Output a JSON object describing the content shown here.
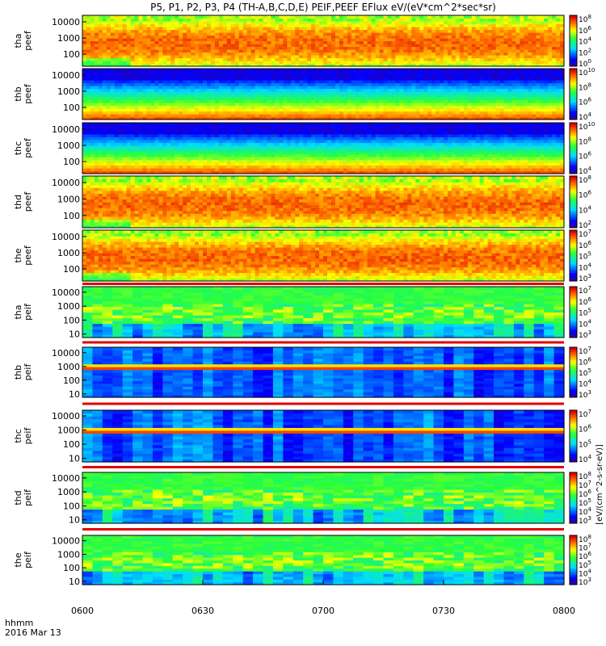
{
  "chart_data": {
    "type": "heatmap",
    "title": "P5, P1, P2, P3, P4 (TH-A,B,C,D,E) PEIF,PEEF EFlux eV/(eV*cm^2*sec*sr)",
    "x_ticks": [
      "0600",
      "0630",
      "0700",
      "0730",
      "0800"
    ],
    "x_range": [
      "06:00",
      "08:00"
    ],
    "time_label": "hhmm",
    "date_label": "2016 Mar 13",
    "colorbar_unit": "[eV/(cm^2-s-sr-eV)]",
    "y_ticks_common": [
      "10",
      "100",
      "1000",
      "10000"
    ],
    "panels": [
      {
        "probe": "tha",
        "product": "peef",
        "ylabels": [
          "tha",
          "peef"
        ],
        "yticks": [
          "100",
          "1000",
          "10000"
        ],
        "cbar_ticks": [
          "10^0",
          "10^2",
          "10^4",
          "10^6",
          "10^8"
        ],
        "style": "electron-red"
      },
      {
        "probe": "thb",
        "product": "peef",
        "ylabels": [
          "thb",
          "peef"
        ],
        "yticks": [
          "100",
          "1000",
          "10000"
        ],
        "cbar_ticks": [
          "10^4",
          "10^6",
          "10^8",
          "10^10"
        ],
        "style": "electron-quiet"
      },
      {
        "probe": "thc",
        "product": "peef",
        "ylabels": [
          "thc",
          "peef"
        ],
        "yticks": [
          "100",
          "1000",
          "10000"
        ],
        "cbar_ticks": [
          "10^4",
          "10^6",
          "10^8",
          "10^10"
        ],
        "style": "electron-quiet"
      },
      {
        "probe": "thd",
        "product": "peef",
        "ylabels": [
          "thd",
          "peef"
        ],
        "yticks": [
          "100",
          "1000",
          "10000"
        ],
        "cbar_ticks": [
          "10^2",
          "10^4",
          "10^6",
          "10^8"
        ],
        "style": "electron-red"
      },
      {
        "probe": "the",
        "product": "peef",
        "ylabels": [
          "the",
          "peef"
        ],
        "yticks": [
          "100",
          "1000",
          "10000"
        ],
        "cbar_ticks": [
          "10^3",
          "10^4",
          "10^5",
          "10^6",
          "10^7"
        ],
        "style": "electron-red"
      },
      {
        "probe": "tha",
        "product": "peif",
        "ylabels": [
          "tha",
          "peif"
        ],
        "yticks": [
          "10",
          "100",
          "1000",
          "10000"
        ],
        "cbar_ticks": [
          "10^3",
          "10^4",
          "10^5",
          "10^6",
          "10^7"
        ],
        "style": "ion-green"
      },
      {
        "probe": "thb",
        "product": "peif",
        "ylabels": [
          "thb",
          "peif"
        ],
        "yticks": [
          "10",
          "100",
          "1000",
          "10000"
        ],
        "cbar_ticks": [
          "10^3",
          "10^4",
          "10^5",
          "10^6",
          "10^7"
        ],
        "style": "ion-quiet"
      },
      {
        "probe": "thc",
        "product": "peif",
        "ylabels": [
          "thc",
          "peif"
        ],
        "yticks": [
          "10",
          "100",
          "1000",
          "10000"
        ],
        "cbar_ticks": [
          "10^4",
          "10^5",
          "10^6",
          "10^7"
        ],
        "style": "ion-quiet"
      },
      {
        "probe": "thd",
        "product": "peif",
        "ylabels": [
          "thd",
          "peif"
        ],
        "yticks": [
          "10",
          "100",
          "1000",
          "10000"
        ],
        "cbar_ticks": [
          "10^3",
          "10^4",
          "10^5",
          "10^6",
          "10^7",
          "10^8"
        ],
        "style": "ion-green"
      },
      {
        "probe": "the",
        "product": "peif",
        "ylabels": [
          "the",
          "peif"
        ],
        "yticks": [
          "10",
          "100",
          "1000",
          "10000"
        ],
        "cbar_ticks": [
          "10^3",
          "10^4",
          "10^5",
          "10^6",
          "10^7",
          "10^8"
        ],
        "style": "ion-green"
      }
    ]
  }
}
